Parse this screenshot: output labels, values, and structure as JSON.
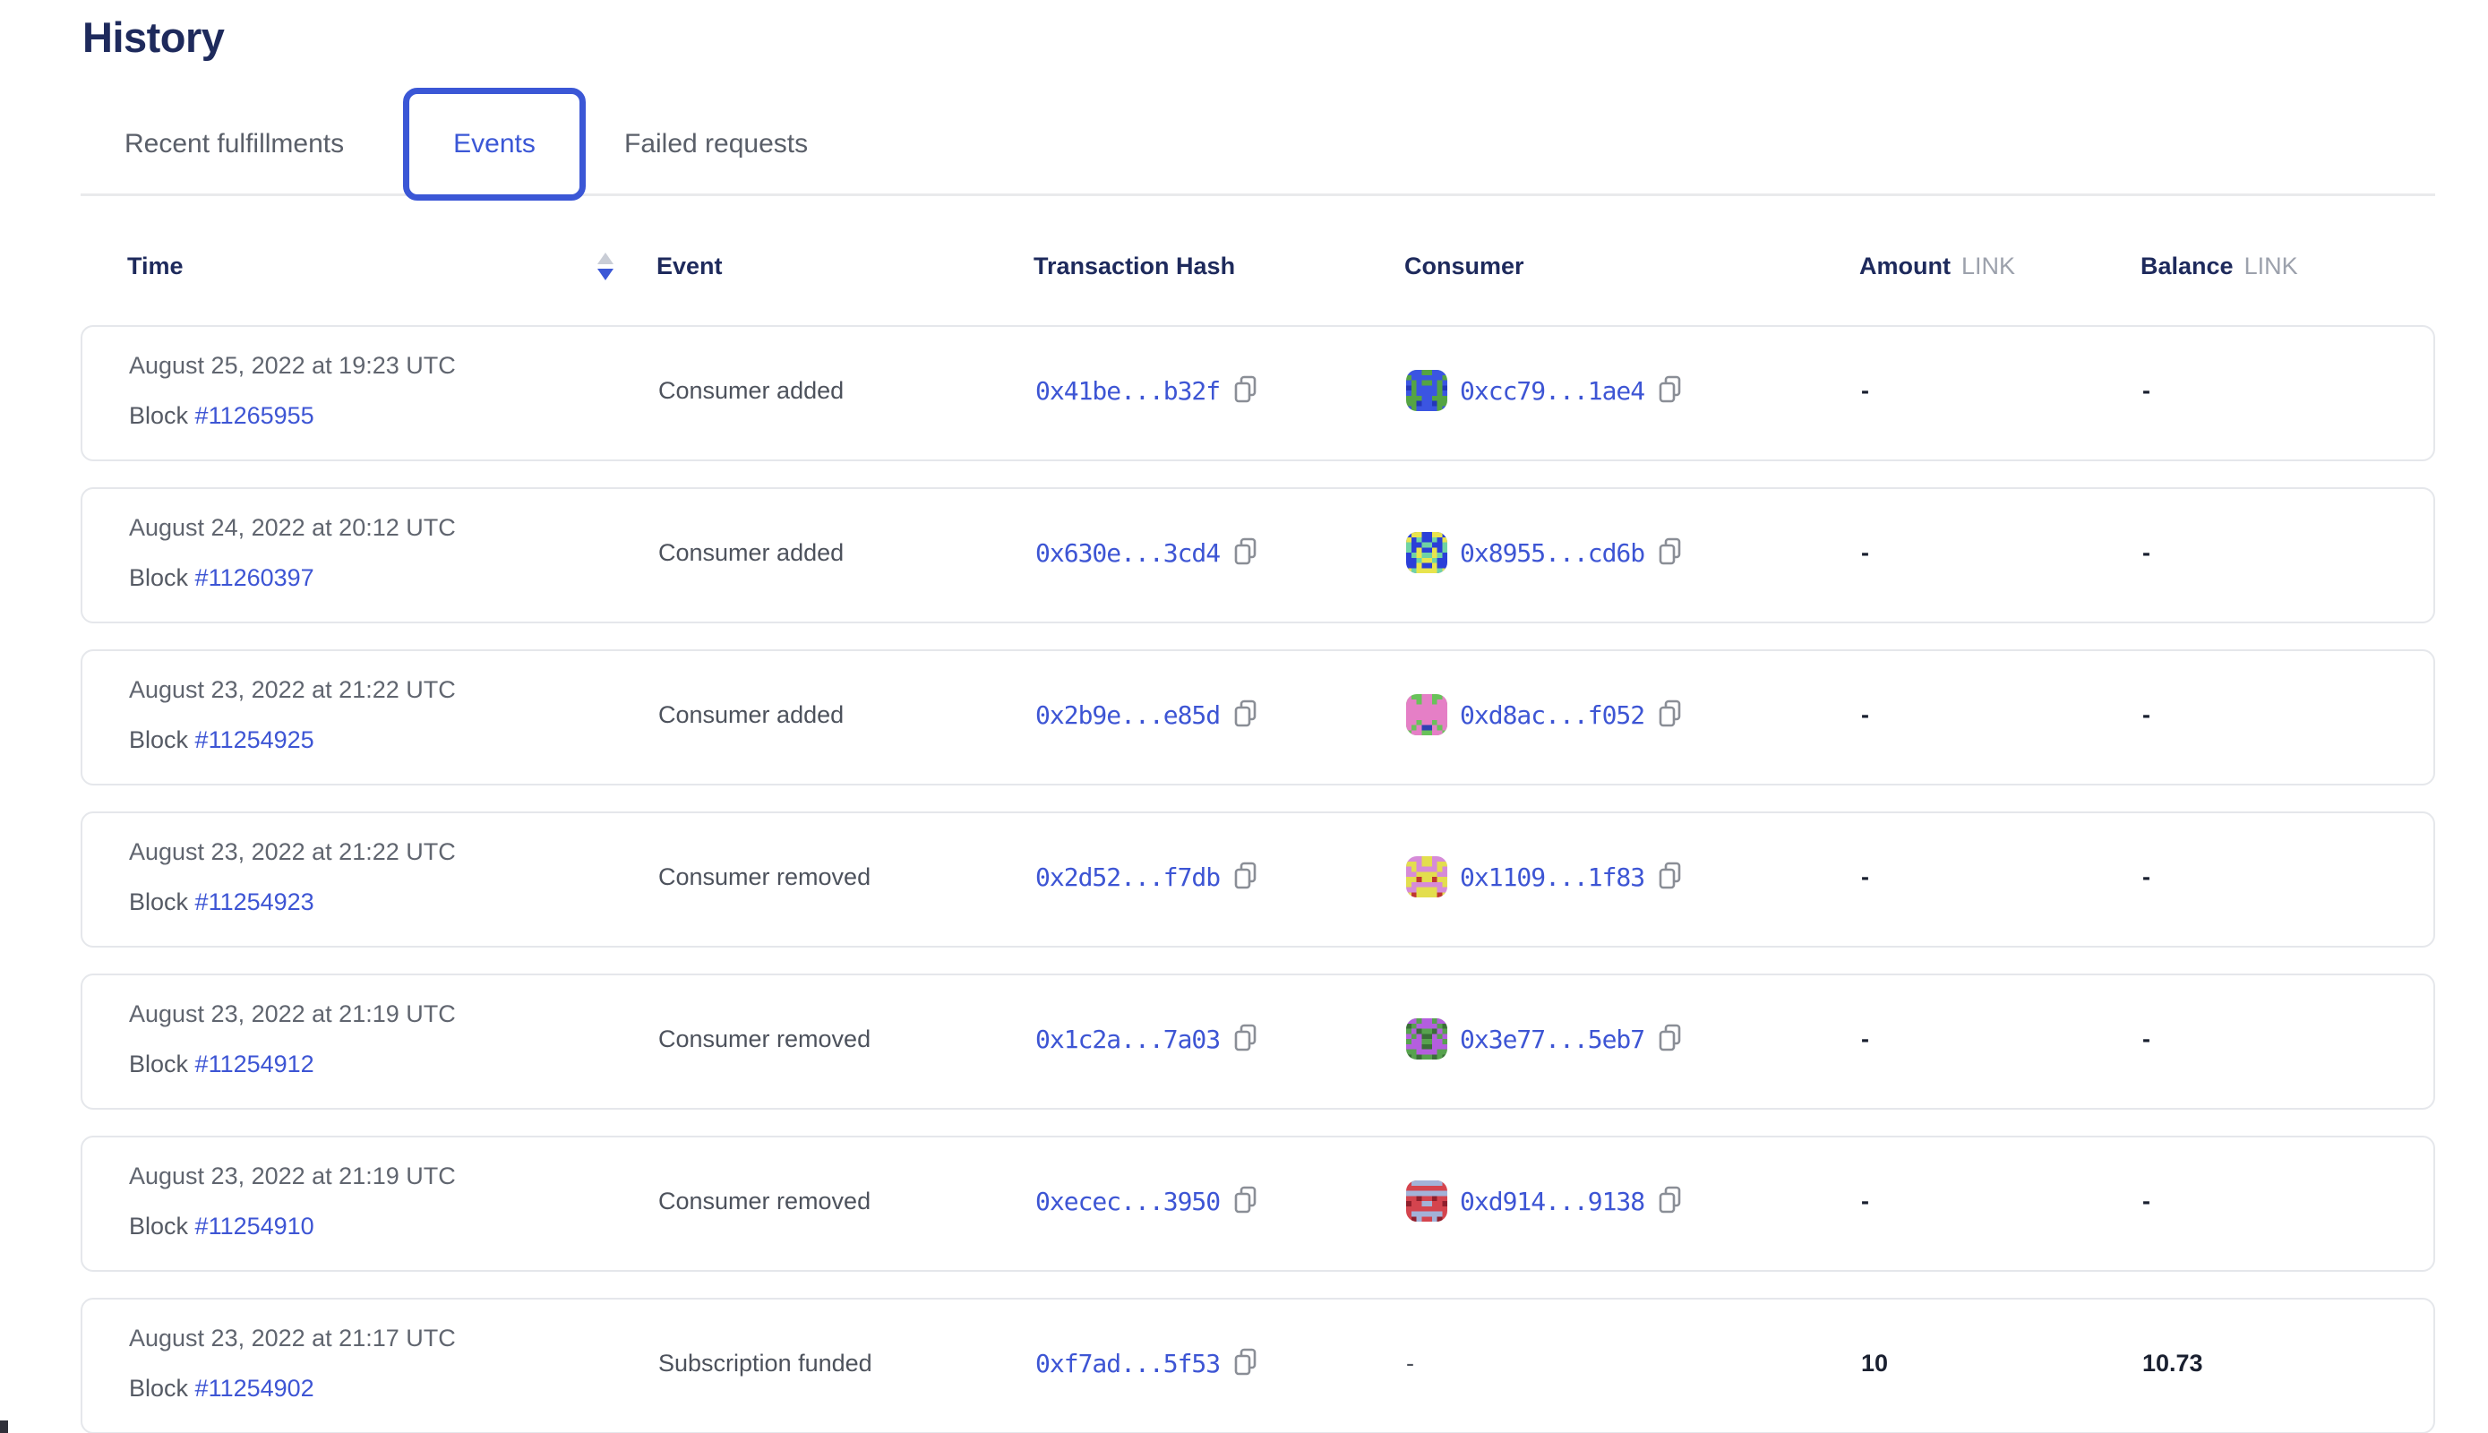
{
  "page": {
    "title": "History"
  },
  "tabs": [
    {
      "label": "Recent fulfillments",
      "active": false
    },
    {
      "label": "Events",
      "active": true
    },
    {
      "label": "Failed requests",
      "active": false
    }
  ],
  "colors": {
    "accent_blue": "#3b57d6",
    "link_blue": "#3d55d4",
    "heading_navy": "#1e2a5c",
    "card_border": "#e5e7eb",
    "sort_inactive": "#c9cdd6"
  },
  "icons": {
    "sort": {
      "name": "sort-arrows-icon",
      "active_direction": "desc"
    },
    "copy": {
      "name": "copy-icon"
    }
  },
  "table": {
    "columns": {
      "time": "Time",
      "event": "Event",
      "tx": "Transaction Hash",
      "consumer": "Consumer",
      "amount": "Amount",
      "amount_unit": "LINK",
      "balance": "Balance",
      "balance_unit": "LINK"
    },
    "rows": [
      {
        "date": "August 25, 2022 at 19:23 UTC",
        "block_label": "Block",
        "block": "#11265955",
        "event": "Consumer added",
        "tx": "0x41be...b32f",
        "consumer": "0xcc79...1ae4",
        "icon": {
          "bg": "#55a443",
          "color": "#3b55e2",
          "spot": "#2437b8"
        },
        "amount": "-",
        "balance": "-"
      },
      {
        "date": "August 24, 2022 at 20:12 UTC",
        "block_label": "Block",
        "block": "#11260397",
        "event": "Consumer added",
        "tx": "0x630e...3cd4",
        "consumer": "0x8955...cd6b",
        "icon": {
          "bg": "#2b3fd8",
          "color": "#e8e44d",
          "spot": "#6fd3a4"
        },
        "amount": "-",
        "balance": "-"
      },
      {
        "date": "August 23, 2022 at 21:22 UTC",
        "block_label": "Block",
        "block": "#11254925",
        "event": "Consumer added",
        "tx": "0x2b9e...e85d",
        "consumer": "0xd8ac...f052",
        "icon": {
          "bg": "#69c25a",
          "color": "#e57fc6",
          "spot": "#2e41b2"
        },
        "amount": "-",
        "balance": "-"
      },
      {
        "date": "August 23, 2022 at 21:22 UTC",
        "block_label": "Block",
        "block": "#11254923",
        "event": "Consumer removed",
        "tx": "0x2d52...f7db",
        "consumer": "0x1109...1f83",
        "icon": {
          "bg": "#d68bd8",
          "color": "#e3de4e",
          "spot": "#bf3730"
        },
        "amount": "-",
        "balance": "-"
      },
      {
        "date": "August 23, 2022 at 21:19 UTC",
        "block_label": "Block",
        "block": "#11254912",
        "event": "Consumer removed",
        "tx": "0x1c2a...7a03",
        "consumer": "0x3e77...5eb7",
        "icon": {
          "bg": "#57a24e",
          "color": "#b45ede",
          "spot": "#3a6e38"
        },
        "amount": "-",
        "balance": "-"
      },
      {
        "date": "August 23, 2022 at 21:19 UTC",
        "block_label": "Block",
        "block": "#11254910",
        "event": "Consumer removed",
        "tx": "0xecec...3950",
        "consumer": "0xd914...9138",
        "icon": {
          "bg": "#d4444e",
          "color": "#a3b2d8",
          "spot": "#8f1f2c"
        },
        "amount": "-",
        "balance": "-"
      },
      {
        "date": "August 23, 2022 at 21:17 UTC",
        "block_label": "Block",
        "block": "#11254902",
        "event": "Subscription funded",
        "tx": "0xf7ad...5f53",
        "consumer": null,
        "icon": null,
        "amount": "10",
        "balance": "10.73"
      }
    ]
  }
}
